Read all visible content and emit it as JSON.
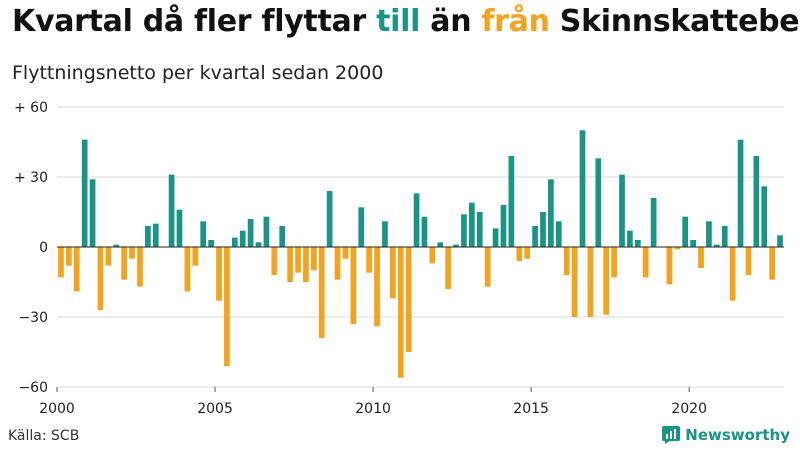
{
  "title": {
    "part1": "Kvartal då fler flyttar ",
    "word_in": "till",
    "part2": " än ",
    "word_out": "från",
    "part3": " Skinnskatteberg"
  },
  "subtitle": "Flyttningsnetto per kvartal sedan 2000",
  "source": "Källa: SCB",
  "brand": "Newsworthy",
  "colors": {
    "positive": "#1a9484",
    "negative": "#f5a21c",
    "grid": "#d9d9d9",
    "axis": "#222222"
  },
  "chart_data": {
    "type": "bar",
    "title": "Kvartal då fler flyttar till än från Skinnskatteberg",
    "subtitle": "Flyttningsnetto per kvartal sedan 2000",
    "xlabel": "",
    "ylabel": "",
    "ylim": [
      -60,
      60
    ],
    "y_ticks": [
      {
        "value": 60,
        "label": "+ 60"
      },
      {
        "value": 30,
        "label": "+ 30"
      },
      {
        "value": 0,
        "label": "0"
      },
      {
        "value": -30,
        "label": "−30"
      },
      {
        "value": -60,
        "label": "−60"
      }
    ],
    "x_ticks": [
      {
        "year": 2000,
        "label": "2000"
      },
      {
        "year": 2005,
        "label": "2005"
      },
      {
        "year": 2010,
        "label": "2010"
      },
      {
        "year": 2015,
        "label": "2015"
      },
      {
        "year": 2020,
        "label": "2020"
      }
    ],
    "start_year": 2000,
    "start_quarter": 1,
    "values": [
      -13,
      -8,
      -19,
      46,
      29,
      -27,
      -8,
      1,
      -14,
      -5,
      -17,
      9,
      10,
      0,
      31,
      16,
      -19,
      -8,
      11,
      3,
      -23,
      -51,
      4,
      7,
      12,
      2,
      13,
      -12,
      9,
      -15,
      -11,
      -15,
      -10,
      -39,
      24,
      -14,
      -5,
      -33,
      17,
      -11,
      -34,
      11,
      -22,
      -56,
      -45,
      23,
      13,
      -7,
      2,
      -18,
      1,
      14,
      19,
      15,
      -17,
      8,
      18,
      39,
      -6,
      -5,
      9,
      15,
      29,
      11,
      -12,
      -30,
      50,
      -30,
      38,
      -29,
      -13,
      31,
      7,
      3,
      -13,
      21,
      0,
      -16,
      -1,
      13,
      3,
      -9,
      11,
      1,
      9,
      -23,
      46,
      -12,
      39,
      26,
      -14,
      5
    ]
  }
}
